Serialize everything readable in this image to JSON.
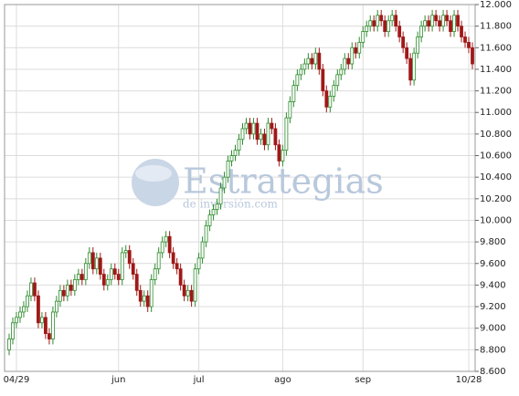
{
  "chart_data": {
    "type": "candlestick",
    "watermark": "Estrategias",
    "watermark_sub": "de inversión.com",
    "up_color": "#2e8b2e",
    "down_color": "#a01818",
    "categories": [
      null,
      null,
      "04/29",
      null,
      null,
      null,
      null,
      null,
      null,
      null,
      null,
      null,
      null,
      null,
      null,
      null,
      null,
      null,
      null,
      null,
      null,
      null,
      null,
      null,
      null,
      null,
      null,
      null,
      null,
      null,
      "jun",
      null,
      null,
      null,
      null,
      null,
      null,
      null,
      null,
      null,
      null,
      null,
      null,
      null,
      null,
      null,
      null,
      null,
      null,
      null,
      null,
      null,
      "jul",
      null,
      null,
      null,
      null,
      null,
      null,
      null,
      null,
      null,
      null,
      null,
      null,
      null,
      null,
      null,
      null,
      null,
      null,
      null,
      null,
      null,
      null,
      "ago",
      null,
      null,
      null,
      null,
      null,
      null,
      null,
      null,
      null,
      null,
      null,
      null,
      null,
      null,
      null,
      null,
      null,
      null,
      null,
      null,
      null,
      "sep",
      null,
      null,
      null,
      null,
      null,
      null,
      null,
      null,
      null,
      null,
      null,
      null,
      null,
      null,
      null,
      null,
      null,
      null,
      null,
      null,
      null,
      null,
      null,
      null,
      null,
      null,
      null,
      null,
      "10/28",
      null
    ],
    "open": [
      8.8,
      8.9,
      9.05,
      9.1,
      9.15,
      9.2,
      9.3,
      9.42,
      9.3,
      9.05,
      9.1,
      8.95,
      8.9,
      9.15,
      9.25,
      9.35,
      9.3,
      9.4,
      9.35,
      9.45,
      9.5,
      9.45,
      9.6,
      9.7,
      9.55,
      9.65,
      9.5,
      9.4,
      9.45,
      9.55,
      9.5,
      9.45,
      9.7,
      9.72,
      9.6,
      9.5,
      9.35,
      9.25,
      9.3,
      9.2,
      9.45,
      9.55,
      9.7,
      9.8,
      9.85,
      9.7,
      9.6,
      9.55,
      9.4,
      9.3,
      9.35,
      9.25,
      9.55,
      9.65,
      9.8,
      9.95,
      10.05,
      10.1,
      10.15,
      10.3,
      10.4,
      10.55,
      10.6,
      10.65,
      10.75,
      10.85,
      10.9,
      10.8,
      10.9,
      10.75,
      10.8,
      10.7,
      10.9,
      10.85,
      10.7,
      10.55,
      10.65,
      10.95,
      11.1,
      11.25,
      11.35,
      11.4,
      11.45,
      11.5,
      11.45,
      11.55,
      11.4,
      11.2,
      11.05,
      11.15,
      11.25,
      11.35,
      11.4,
      11.5,
      11.45,
      11.6,
      11.55,
      11.65,
      11.75,
      11.8,
      11.85,
      11.8,
      11.9,
      11.85,
      11.75,
      11.85,
      11.9,
      11.8,
      11.7,
      11.6,
      11.5,
      11.3,
      11.55,
      11.7,
      11.8,
      11.85,
      11.8,
      11.9,
      11.85,
      11.8,
      11.9,
      11.85,
      11.75,
      11.9,
      11.8,
      11.7,
      11.65,
      11.6
    ],
    "high": [
      8.95,
      9.1,
      9.15,
      9.2,
      9.25,
      9.35,
      9.47,
      9.47,
      9.35,
      9.15,
      9.15,
      9.0,
      9.2,
      9.3,
      9.4,
      9.4,
      9.45,
      9.45,
      9.5,
      9.55,
      9.55,
      9.65,
      9.75,
      9.75,
      9.7,
      9.7,
      9.55,
      9.5,
      9.6,
      9.6,
      9.55,
      9.75,
      9.77,
      9.77,
      9.65,
      9.55,
      9.4,
      9.35,
      9.35,
      9.5,
      9.6,
      9.75,
      9.85,
      9.9,
      9.9,
      9.75,
      9.65,
      9.6,
      9.45,
      9.4,
      9.4,
      9.6,
      9.7,
      9.85,
      10.0,
      10.1,
      10.15,
      10.2,
      10.35,
      10.45,
      10.6,
      10.65,
      10.7,
      10.8,
      10.9,
      10.95,
      10.95,
      10.95,
      10.95,
      10.85,
      10.85,
      10.95,
      10.95,
      10.9,
      10.75,
      10.7,
      11.0,
      11.15,
      11.3,
      11.4,
      11.45,
      11.5,
      11.55,
      11.55,
      11.6,
      11.6,
      11.45,
      11.25,
      11.2,
      11.3,
      11.4,
      11.45,
      11.55,
      11.55,
      11.65,
      11.65,
      11.7,
      11.8,
      11.85,
      11.9,
      11.9,
      11.95,
      11.95,
      11.9,
      11.9,
      11.95,
      11.95,
      11.85,
      11.75,
      11.65,
      11.55,
      11.6,
      11.75,
      11.85,
      11.9,
      11.9,
      11.95,
      11.95,
      11.9,
      11.95,
      11.95,
      11.9,
      11.95,
      11.95,
      11.85,
      11.75,
      11.7,
      11.65
    ],
    "low": [
      8.75,
      8.85,
      9.0,
      9.05,
      9.1,
      9.15,
      9.25,
      9.25,
      9.0,
      9.0,
      8.9,
      8.85,
      8.85,
      9.1,
      9.2,
      9.25,
      9.25,
      9.3,
      9.3,
      9.4,
      9.4,
      9.4,
      9.55,
      9.5,
      9.5,
      9.45,
      9.35,
      9.35,
      9.4,
      9.45,
      9.4,
      9.4,
      9.65,
      9.55,
      9.45,
      9.3,
      9.2,
      9.2,
      9.15,
      9.15,
      9.4,
      9.5,
      9.65,
      9.75,
      9.65,
      9.55,
      9.5,
      9.35,
      9.25,
      9.25,
      9.2,
      9.2,
      9.5,
      9.6,
      9.75,
      9.9,
      10.0,
      10.05,
      10.1,
      10.25,
      10.35,
      10.5,
      10.55,
      10.6,
      10.7,
      10.8,
      10.75,
      10.75,
      10.7,
      10.7,
      10.65,
      10.65,
      10.8,
      10.65,
      10.5,
      10.5,
      10.6,
      10.9,
      11.05,
      11.2,
      11.3,
      11.35,
      11.4,
      11.4,
      11.4,
      11.35,
      11.15,
      11.0,
      11.0,
      11.1,
      11.2,
      11.3,
      11.35,
      11.4,
      11.4,
      11.5,
      11.5,
      11.6,
      11.7,
      11.75,
      11.75,
      11.75,
      11.8,
      11.7,
      11.7,
      11.8,
      11.75,
      11.65,
      11.55,
      11.45,
      11.25,
      11.25,
      11.5,
      11.65,
      11.75,
      11.75,
      11.75,
      11.8,
      11.75,
      11.75,
      11.8,
      11.7,
      11.7,
      11.75,
      11.65,
      11.6,
      11.55,
      11.4
    ],
    "close": [
      8.9,
      9.05,
      9.1,
      9.15,
      9.2,
      9.3,
      9.42,
      9.3,
      9.05,
      9.1,
      8.95,
      8.9,
      9.15,
      9.25,
      9.35,
      9.3,
      9.4,
      9.35,
      9.45,
      9.5,
      9.45,
      9.6,
      9.7,
      9.55,
      9.65,
      9.5,
      9.4,
      9.45,
      9.55,
      9.5,
      9.45,
      9.7,
      9.72,
      9.6,
      9.5,
      9.35,
      9.25,
      9.3,
      9.2,
      9.45,
      9.55,
      9.7,
      9.8,
      9.85,
      9.7,
      9.6,
      9.55,
      9.4,
      9.3,
      9.35,
      9.25,
      9.55,
      9.65,
      9.8,
      9.95,
      10.05,
      10.1,
      10.15,
      10.3,
      10.4,
      10.55,
      10.6,
      10.65,
      10.75,
      10.85,
      10.9,
      10.8,
      10.9,
      10.75,
      10.8,
      10.7,
      10.9,
      10.85,
      10.7,
      10.55,
      10.65,
      10.95,
      11.1,
      11.25,
      11.35,
      11.4,
      11.45,
      11.5,
      11.45,
      11.55,
      11.4,
      11.2,
      11.05,
      11.15,
      11.25,
      11.35,
      11.4,
      11.5,
      11.45,
      11.6,
      11.55,
      11.65,
      11.75,
      11.8,
      11.85,
      11.8,
      11.9,
      11.85,
      11.75,
      11.85,
      11.9,
      11.8,
      11.7,
      11.6,
      11.5,
      11.3,
      11.55,
      11.7,
      11.8,
      11.85,
      11.8,
      11.9,
      11.85,
      11.8,
      11.9,
      11.85,
      11.75,
      11.9,
      11.8,
      11.7,
      11.65,
      11.6,
      11.45
    ],
    "ylim": [
      8.6,
      12.0
    ],
    "yticks": [
      {
        "value": 8.6,
        "label": "8.600"
      },
      {
        "value": 8.8,
        "label": "8.800"
      },
      {
        "value": 9.0,
        "label": "9.000"
      },
      {
        "value": 9.2,
        "label": "9.200"
      },
      {
        "value": 9.4,
        "label": "9.400"
      },
      {
        "value": 9.6,
        "label": "9.600"
      },
      {
        "value": 9.8,
        "label": "9.800"
      },
      {
        "value": 10.0,
        "label": "10.000"
      },
      {
        "value": 10.2,
        "label": "10.200"
      },
      {
        "value": 10.4,
        "label": "10.400"
      },
      {
        "value": 10.6,
        "label": "10.600"
      },
      {
        "value": 10.8,
        "label": "10.800"
      },
      {
        "value": 11.0,
        "label": "11.000"
      },
      {
        "value": 11.2,
        "label": "11.200"
      },
      {
        "value": 11.4,
        "label": "11.400"
      },
      {
        "value": 11.6,
        "label": "11.600"
      },
      {
        "value": 11.8,
        "label": "11.800"
      },
      {
        "value": 12.0,
        "label": "12.000"
      }
    ],
    "grid": true
  }
}
